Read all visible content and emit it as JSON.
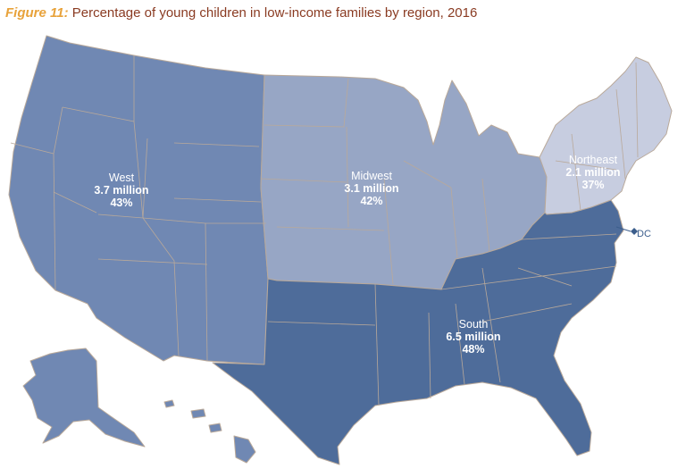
{
  "title": {
    "figure_label": "Figure 11:",
    "text": "Percentage of young children in low-income families by region, 2016"
  },
  "colors": {
    "west": "#7088b3",
    "midwest": "#97a6c5",
    "northeast": "#c7cde0",
    "south": "#4e6c9a",
    "borders": "#b9a99a",
    "dc_marker": "#3b5d8c"
  },
  "regions": [
    {
      "key": "west",
      "name": "West",
      "value": "3.7 million",
      "pct": "43%"
    },
    {
      "key": "midwest",
      "name": "Midwest",
      "value": "3.1 million",
      "pct": "42%"
    },
    {
      "key": "northeast",
      "name": "Northeast",
      "value": "2.1 million",
      "pct": "37%"
    },
    {
      "key": "south",
      "name": "South",
      "value": "6.5 million",
      "pct": "48%"
    }
  ],
  "dc": {
    "label": "DC"
  }
}
